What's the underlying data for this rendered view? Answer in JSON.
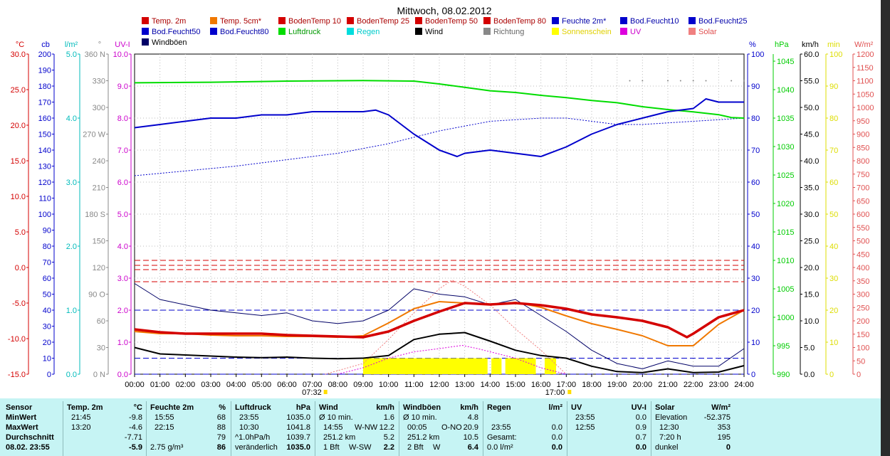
{
  "chart_data": {
    "type": "line",
    "title": "Mittwoch, 08.02.2012",
    "x_ticks": [
      "00:00",
      "01:00",
      "02:00",
      "03:00",
      "04:00",
      "05:00",
      "06:00",
      "07:00",
      "08:00",
      "09:00",
      "10:00",
      "11:00",
      "12:00",
      "13:00",
      "14:00",
      "15:00",
      "16:00",
      "17:00",
      "18:00",
      "19:00",
      "20:00",
      "21:00",
      "22:00",
      "23:00",
      "24:00"
    ],
    "sunrise": "07:32",
    "sunset": "17:00",
    "legend": [
      {
        "name": "Temp. 2m",
        "color": "#d40000"
      },
      {
        "name": "Temp. 5cm*",
        "color": "#f07800"
      },
      {
        "name": "BodenTemp 10",
        "color": "#d40000"
      },
      {
        "name": "BodenTemp 25",
        "color": "#d40000"
      },
      {
        "name": "BodenTemp 50",
        "color": "#d40000"
      },
      {
        "name": "BodenTemp 80",
        "color": "#d40000"
      },
      {
        "name": "Feuchte 2m*",
        "color": "#0000cc"
      },
      {
        "name": "Bod.Feucht10",
        "color": "#0000cc"
      },
      {
        "name": "Bod.Feucht25",
        "color": "#0000cc"
      },
      {
        "name": "Bod.Feucht50",
        "color": "#0000cc"
      },
      {
        "name": "Bod.Feucht80",
        "color": "#0000cc"
      },
      {
        "name": "Luftdruck",
        "color": "#00dd00"
      },
      {
        "name": "Regen",
        "color": "#00dddd"
      },
      {
        "name": "Wind",
        "color": "#000000"
      },
      {
        "name": "Richtung",
        "color": "#888888"
      },
      {
        "name": "Sonnenschein",
        "color": "#ffff00"
      },
      {
        "name": "UV",
        "color": "#dd00dd"
      },
      {
        "name": "Solar",
        "color": "#f08080"
      },
      {
        "name": "Windböen",
        "color": "#000066"
      }
    ],
    "axes_left": [
      {
        "unit": "°C",
        "color": "#d40000",
        "ticks": [
          "30.0",
          "25.0",
          "20.0",
          "15.0",
          "10.0",
          "5.0",
          "0.0",
          "-5.0",
          "-10.0",
          "-15.0"
        ]
      },
      {
        "unit": "cb",
        "color": "#0000cc",
        "ticks": [
          "200",
          "190",
          "180",
          "170",
          "160",
          "150",
          "140",
          "130",
          "120",
          "110",
          "100",
          "90",
          "80",
          "70",
          "60",
          "50",
          "40",
          "30",
          "20",
          "10",
          "0"
        ]
      },
      {
        "unit": "l/m²",
        "color": "#00bbbb",
        "ticks": [
          "5.0",
          "4.0",
          "3.0",
          "2.0",
          "1.0",
          "0.0"
        ]
      },
      {
        "unit": "°",
        "color": "#888888",
        "ticks": [
          "360 N",
          "330",
          "300",
          "270 W",
          "240",
          "210",
          "180 S",
          "150",
          "120",
          "90 O",
          "60",
          "30",
          "0 N"
        ]
      },
      {
        "unit": "UV-I",
        "color": "#cc00cc",
        "ticks": [
          "10.0",
          "9.0",
          "8.0",
          "7.0",
          "6.0",
          "5.0",
          "4.0",
          "3.0",
          "2.0",
          "1.0",
          "0.0"
        ]
      }
    ],
    "axes_right": [
      {
        "unit": "%",
        "color": "#0000cc",
        "ticks": [
          "100",
          "90",
          "80",
          "70",
          "60",
          "50",
          "40",
          "30",
          "20",
          "10",
          "0"
        ]
      },
      {
        "unit": "hPa",
        "color": "#00cc00",
        "ticks": [
          "1045",
          "1040",
          "1035",
          "1030",
          "1025",
          "1020",
          "1015",
          "1010",
          "1005",
          "1000",
          "995",
          "990"
        ]
      },
      {
        "unit": "km/h",
        "color": "#000000",
        "ticks": [
          "60.0",
          "55.0",
          "50.0",
          "45.0",
          "40.0",
          "35.0",
          "30.0",
          "25.0",
          "20.0",
          "15.0",
          "10.0",
          "5.0",
          "0.0"
        ]
      },
      {
        "unit": "min",
        "color": "#dddd00",
        "ticks": [
          "100",
          "90",
          "80",
          "70",
          "60",
          "50",
          "40",
          "30",
          "20",
          "10",
          "0"
        ]
      },
      {
        "unit": "W/m²",
        "color": "#e05050",
        "ticks": [
          "1200",
          "1150",
          "1100",
          "1050",
          "1000",
          "950",
          "900",
          "850",
          "800",
          "750",
          "700",
          "650",
          "600",
          "550",
          "500",
          "450",
          "400",
          "350",
          "300",
          "250",
          "200",
          "150",
          "100",
          "50",
          "0"
        ]
      }
    ],
    "series": [
      {
        "name": "Temp. 2m",
        "axis": "°C",
        "color": "#d40000",
        "x": [
          0,
          1,
          2,
          3,
          4,
          5,
          6,
          7,
          8,
          9,
          10,
          11,
          12,
          13,
          14,
          15,
          16,
          17,
          18,
          19,
          20,
          21,
          21.75,
          22,
          23,
          24
        ],
        "y": [
          -8.7,
          -9.1,
          -9.3,
          -9.3,
          -9.3,
          -9.3,
          -9.5,
          -9.6,
          -9.7,
          -9.8,
          -9.0,
          -7.5,
          -6.2,
          -5.0,
          -5.2,
          -5.0,
          -5.3,
          -5.8,
          -6.6,
          -7.0,
          -7.5,
          -8.4,
          -9.8,
          -9.3,
          -7.0,
          -6.0
        ]
      },
      {
        "name": "Temp. 5cm*",
        "axis": "°C",
        "color": "#f07800",
        "x": [
          0,
          1,
          2,
          3,
          4,
          5,
          6,
          7,
          8,
          9,
          10,
          11,
          12,
          13,
          14,
          15,
          16,
          17,
          18,
          19,
          20,
          20.5,
          21,
          22,
          23,
          24
        ],
        "y": [
          -9.0,
          -9.3,
          -9.3,
          -9.5,
          -9.6,
          -9.6,
          -9.7,
          -9.7,
          -9.8,
          -9.6,
          -7.8,
          -5.8,
          -4.8,
          -5.0,
          -5.2,
          -4.9,
          -5.6,
          -6.8,
          -7.9,
          -8.7,
          -9.6,
          -10.3,
          -11.0,
          -11.0,
          -8.0,
          -6.0
        ]
      },
      {
        "name": "BodenTemp 10",
        "axis": "°C",
        "color": "#d40000",
        "x": [
          0,
          24
        ],
        "y": [
          -2.0,
          -2.0
        ]
      },
      {
        "name": "BodenTemp 25",
        "axis": "°C",
        "color": "#d40000",
        "x": [
          0,
          24
        ],
        "y": [
          -0.3,
          -0.3
        ]
      },
      {
        "name": "BodenTemp 50",
        "axis": "°C",
        "color": "#d40000",
        "x": [
          0,
          24
        ],
        "y": [
          0.3,
          0.3
        ]
      },
      {
        "name": "BodenTemp 80",
        "axis": "°C",
        "color": "#d40000",
        "x": [
          0,
          24
        ],
        "y": [
          1.0,
          1.0
        ]
      },
      {
        "name": "Feuchte 2m*",
        "axis": "%",
        "color": "#0000cc",
        "x": [
          0,
          1,
          2,
          3,
          4,
          5,
          6,
          7,
          8,
          9,
          9.5,
          10,
          11,
          12,
          12.7,
          13,
          14,
          15,
          16,
          17,
          18,
          19,
          20,
          21,
          22,
          22.5,
          23,
          24
        ],
        "y": [
          77,
          78,
          79,
          80,
          80,
          81,
          81,
          82,
          82,
          82,
          82.5,
          81,
          75,
          70,
          68,
          69,
          70,
          69,
          68,
          71,
          75,
          78,
          80,
          82,
          83,
          86,
          85,
          85
        ]
      },
      {
        "name": "Bod.Feucht10",
        "axis": "%",
        "color": "#0000cc",
        "x": [
          0,
          2,
          4,
          6,
          8,
          10,
          12,
          14,
          16,
          17,
          18,
          19,
          20,
          22,
          24
        ],
        "y": [
          62,
          63.5,
          65,
          67,
          69,
          72,
          76,
          79,
          80,
          80,
          79,
          78,
          78,
          79,
          80
        ]
      },
      {
        "name": "Bod.Feucht25",
        "axis": "%",
        "color": "#0000cc",
        "x": [
          0,
          24
        ],
        "y": [
          20,
          20
        ]
      },
      {
        "name": "Bod.Feucht50",
        "axis": "%",
        "color": "#0000cc",
        "x": [
          0,
          24
        ],
        "y": [
          5,
          5
        ]
      },
      {
        "name": "Bod.Feucht80",
        "axis": "%",
        "color": "#0000cc",
        "x": [
          0,
          24
        ],
        "y": [
          0,
          0
        ]
      },
      {
        "name": "Luftdruck",
        "axis": "hPa",
        "color": "#00dd00",
        "x": [
          0,
          3,
          6,
          9,
          11,
          12,
          13,
          14,
          15,
          16,
          17,
          18,
          19,
          20,
          21,
          22,
          23,
          23.5,
          24
        ],
        "y": [
          1041.2,
          1041.3,
          1041.5,
          1041.6,
          1041.5,
          1041.0,
          1040.4,
          1039.8,
          1039.5,
          1039.0,
          1038.6,
          1038.1,
          1037.7,
          1037.0,
          1036.5,
          1036.1,
          1035.6,
          1035.1,
          1035.0
        ]
      },
      {
        "name": "Wind",
        "axis": "km/h",
        "color": "#000000",
        "x": [
          0,
          1,
          2,
          3,
          4,
          5,
          6,
          7,
          8,
          9,
          10,
          11,
          12,
          13,
          14,
          15,
          16,
          17,
          18,
          19,
          20,
          21,
          22,
          23,
          24
        ],
        "y": [
          5.0,
          3.8,
          3.6,
          3.4,
          3.2,
          3.1,
          3.2,
          3.0,
          2.9,
          3.0,
          3.5,
          6.5,
          7.5,
          7.8,
          6.2,
          4.5,
          3.5,
          3.0,
          1.5,
          0.5,
          0.3,
          1.0,
          0.3,
          0.4,
          1.6
        ]
      },
      {
        "name": "Windböen",
        "axis": "km/h",
        "color": "#000066",
        "x": [
          0,
          1,
          2,
          3,
          4,
          5,
          6,
          7,
          8,
          9,
          10,
          11,
          12,
          13,
          14,
          15,
          16,
          17,
          18,
          19,
          20,
          21,
          22,
          23,
          24
        ],
        "y": [
          17.0,
          14.0,
          13.0,
          12.0,
          11.5,
          11.0,
          11.5,
          10.0,
          9.5,
          10.0,
          12.0,
          16.0,
          15.0,
          14.5,
          13.0,
          14.0,
          11.0,
          8.0,
          4.5,
          2.0,
          1.0,
          2.5,
          1.5,
          1.5,
          4.8
        ]
      },
      {
        "name": "Richtung",
        "axis": "°",
        "color": "#888888",
        "x": [
          19.5,
          20,
          21,
          21.5,
          22,
          22.5,
          23.5,
          24
        ],
        "y": [
          330,
          330,
          330,
          330,
          330,
          330,
          330,
          330
        ]
      },
      {
        "name": "Solar",
        "axis": "W/m²",
        "color": "#f08080",
        "x": [
          7.5,
          9,
          10,
          11,
          12,
          12.5,
          13,
          14,
          15,
          16,
          17
        ],
        "y": [
          0,
          40,
          130,
          230,
          320,
          353,
          330,
          260,
          170,
          90,
          0
        ]
      },
      {
        "name": "UV",
        "axis": "UV-I",
        "color": "#dd00dd",
        "x": [
          8,
          9,
          10,
          11,
          12,
          12.9,
          13.5,
          14,
          15,
          16,
          17
        ],
        "y": [
          0,
          0.2,
          0.5,
          0.7,
          0.8,
          0.9,
          0.8,
          0.7,
          0.5,
          0.2,
          0
        ]
      },
      {
        "name": "Sonnenschein",
        "axis": "min",
        "color": "#ffff00",
        "x": [
          9.0,
          10.0,
          11.0,
          12.0,
          13.0,
          14.0,
          15.0,
          16.0,
          16.5
        ],
        "y": [
          5,
          5,
          5,
          5,
          5,
          5,
          5,
          5,
          5
        ]
      }
    ]
  },
  "stats": {
    "headers": [
      "Sensor",
      "Temp. 2m",
      "°C",
      "Feuchte 2m",
      "%",
      "Luftdruck",
      "hPa",
      "Wind",
      "km/h",
      "Windböen",
      "km/h",
      "Regen",
      "l/m²",
      "UV",
      "UV-I",
      "Solar",
      "W/m²"
    ],
    "labels": [
      "MinWert",
      "MaxWert",
      "Durchschnitt",
      "08.02. 23:55"
    ],
    "temp": [
      [
        "21:45",
        "-9.8"
      ],
      [
        "13:20",
        "-4.6"
      ],
      [
        "",
        "-7.71"
      ],
      [
        "",
        "-5.9"
      ]
    ],
    "hum": [
      [
        "15:55",
        "68"
      ],
      [
        "22:15",
        "88"
      ],
      [
        "",
        "79"
      ],
      [
        "2.75 g/m³",
        "86"
      ]
    ],
    "press": [
      [
        "23:55",
        "1035.0"
      ],
      [
        "10:30",
        "1041.8"
      ],
      [
        "^1.0hPa/h",
        "1039.7"
      ],
      [
        "veränderlich",
        "1035.0"
      ]
    ],
    "wind": [
      [
        "Ø 10 min.",
        "",
        "1.6"
      ],
      [
        "14:55",
        "W-NW",
        "12.2"
      ],
      [
        "251.2 km",
        "",
        "5.2"
      ],
      [
        "1 Bft",
        "W-SW",
        "2.2"
      ]
    ],
    "gust": [
      [
        "Ø 10 min.",
        "",
        "4.8"
      ],
      [
        "00:05",
        "O-NO",
        "20.9"
      ],
      [
        "251.2 km",
        "",
        "10.5"
      ],
      [
        "2 Bft",
        "W",
        "6.4"
      ]
    ],
    "rain": [
      [
        "",
        ""
      ],
      [
        "23:55",
        "0.0"
      ],
      [
        "Gesamt:",
        "0.0"
      ],
      [
        "0.0 l/m²",
        "0.0"
      ]
    ],
    "uv": [
      [
        "23:55",
        "0.0"
      ],
      [
        "12:55",
        "0.9"
      ],
      [
        "",
        "0.7"
      ],
      [
        "",
        "0.0"
      ]
    ],
    "solar": [
      [
        "Elevation",
        "-52.375"
      ],
      [
        "12:30",
        "353"
      ],
      [
        "7:20 h",
        "195"
      ],
      [
        "dunkel",
        "0"
      ]
    ]
  }
}
